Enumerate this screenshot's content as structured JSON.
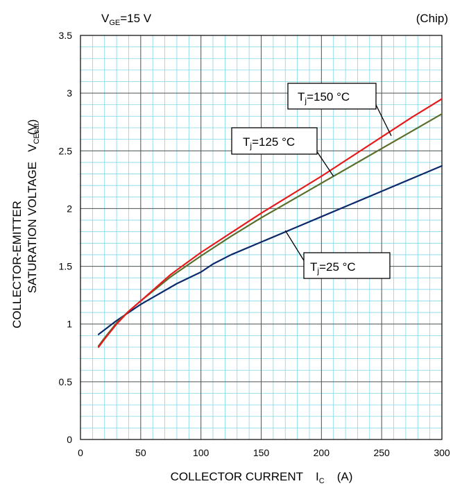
{
  "condition": {
    "v_sym": "V",
    "v_sub": "GE",
    "v_val": "=15 V"
  },
  "chip_note": "(Chip)",
  "ylabel": {
    "line1": "COLLECTOR-EMITTER",
    "line2": "SATURATION VOLTAGE",
    "sym": "V",
    "sub": "CEsat",
    "unit": "(V)"
  },
  "xlabel": {
    "text": "COLLECTOR CURRENT",
    "sym": "I",
    "sub": "C",
    "unit": "(A)"
  },
  "colors": {
    "grid_major": "#555555",
    "grid_minor": "#7fd7e8",
    "tj25": "#0a2a6b",
    "tj125": "#5a6e2a",
    "tj150": "#e8191a"
  },
  "chart_data": {
    "type": "line",
    "xlim": [
      0,
      300
    ],
    "ylim": [
      0,
      3.5
    ],
    "x_ticks": [
      0,
      50,
      100,
      150,
      200,
      250,
      300
    ],
    "y_ticks": [
      0,
      0.5,
      1,
      1.5,
      2,
      2.5,
      3,
      3.5
    ],
    "x_tick_labels": [
      "0",
      "50",
      "100",
      "150",
      "200",
      "250",
      "300"
    ],
    "y_tick_labels": [
      "0",
      "0.5",
      "1",
      "1.5",
      "2",
      "2.5",
      "3",
      "3.5"
    ],
    "grid": true,
    "series": [
      {
        "name_sym": "T",
        "name_sub": "j",
        "name_val": "=25 °C",
        "x": [
          15,
          20,
          30,
          40,
          50,
          60,
          70,
          80,
          100,
          110,
          125,
          150,
          175,
          200,
          225,
          250,
          275,
          300
        ],
        "y": [
          0.91,
          0.95,
          1.03,
          1.1,
          1.17,
          1.23,
          1.29,
          1.35,
          1.45,
          1.52,
          1.6,
          1.71,
          1.82,
          1.93,
          2.04,
          2.15,
          2.26,
          2.37
        ]
      },
      {
        "name_sym": "T",
        "name_sub": "j",
        "name_val": "=125 °C",
        "x": [
          15,
          20,
          30,
          40,
          50,
          75,
          100,
          125,
          150,
          175,
          200,
          225,
          250,
          275,
          300
        ],
        "y": [
          0.81,
          0.88,
          1.01,
          1.11,
          1.2,
          1.41,
          1.59,
          1.76,
          1.92,
          2.07,
          2.22,
          2.37,
          2.52,
          2.67,
          2.82
        ]
      },
      {
        "name_sym": "T",
        "name_sub": "j",
        "name_val": "=150 °C",
        "x": [
          15,
          20,
          30,
          40,
          50,
          75,
          100,
          125,
          150,
          175,
          200,
          225,
          250,
          275,
          300
        ],
        "y": [
          0.8,
          0.87,
          1.0,
          1.11,
          1.2,
          1.43,
          1.62,
          1.79,
          1.96,
          2.12,
          2.28,
          2.45,
          2.62,
          2.79,
          2.95
        ]
      }
    ]
  }
}
